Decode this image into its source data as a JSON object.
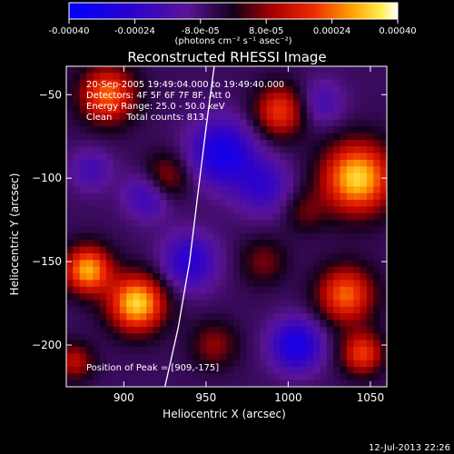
{
  "chart_data": {
    "type": "heatmap",
    "title": "Reconstructed RHESSI Image",
    "xlabel": "Heliocentric X (arcsec)",
    "ylabel": "Heliocentric Y (arcsec)",
    "xlim": [
      865,
      1060
    ],
    "ylim": [
      -225,
      -33
    ],
    "x_ticks": [
      900,
      950,
      1000,
      1050
    ],
    "y_ticks": [
      -50,
      -100,
      -150,
      -200
    ],
    "colorbar": {
      "min": -0.0004,
      "max": 0.0004,
      "tick_values": [
        -0.0004,
        -0.00024,
        -8e-05,
        8e-05,
        0.00024,
        0.0004
      ],
      "tick_labels": [
        "-0.00040",
        "-0.00024",
        "-8.0e-05",
        "8.0e-05",
        "0.00024",
        "0.00040"
      ],
      "units_label": "(photons cm⁻² s⁻¹ asec⁻²)"
    },
    "annotations": [
      "20-Sep-2005 19:49:04.000 to 19:49:40.000",
      "Detectors: 4F 5F 6F 7F 8F, Att 0",
      "Energy Range: 25.0 - 50.0 keV",
      "Clean     Total counts: 813."
    ],
    "peak_label": "Position of Peak = [909,-175]",
    "peak": [
      909,
      -175
    ],
    "limb_curve": [
      [
        925,
        -225
      ],
      [
        933,
        -190
      ],
      [
        940,
        -150
      ],
      [
        945,
        -110
      ],
      [
        950,
        -70
      ],
      [
        955,
        -33
      ]
    ],
    "intensity_blobs": [
      {
        "x": 908,
        "y": -175,
        "sigma": 12,
        "value": 0.0004
      },
      {
        "x": 878,
        "y": -155,
        "sigma": 10,
        "value": 0.00036
      },
      {
        "x": 1042,
        "y": -100,
        "sigma": 15,
        "value": 0.0004
      },
      {
        "x": 1035,
        "y": -170,
        "sigma": 12,
        "value": 0.0003
      },
      {
        "x": 890,
        "y": -50,
        "sigma": 12,
        "value": 0.0003
      },
      {
        "x": 995,
        "y": -60,
        "sigma": 11,
        "value": 0.00026
      },
      {
        "x": 925,
        "y": -100,
        "sigma": 10,
        "value": 0.00018
      },
      {
        "x": 1045,
        "y": -205,
        "sigma": 9,
        "value": 0.00026
      },
      {
        "x": 985,
        "y": -150,
        "sigma": 10,
        "value": 0.00012
      },
      {
        "x": 955,
        "y": -200,
        "sigma": 10,
        "value": 0.00014
      },
      {
        "x": 1010,
        "y": -120,
        "sigma": 9,
        "value": 0.0001
      },
      {
        "x": 870,
        "y": -210,
        "sigma": 8,
        "value": 0.00018
      },
      {
        "x": 960,
        "y": -85,
        "sigma": 14,
        "value": -0.00026
      },
      {
        "x": 1005,
        "y": -200,
        "sigma": 11,
        "value": -0.00026
      },
      {
        "x": 940,
        "y": -150,
        "sigma": 12,
        "value": -0.0002
      },
      {
        "x": 915,
        "y": -110,
        "sigma": 10,
        "value": -0.00018
      },
      {
        "x": 985,
        "y": -105,
        "sigma": 12,
        "value": -0.00016
      },
      {
        "x": 1020,
        "y": -55,
        "sigma": 10,
        "value": -0.00012
      },
      {
        "x": 880,
        "y": -95,
        "sigma": 9,
        "value": -0.00012
      }
    ],
    "background_value": -6e-05
  },
  "footer_timestamp": "12-Jul-2013 22:26"
}
